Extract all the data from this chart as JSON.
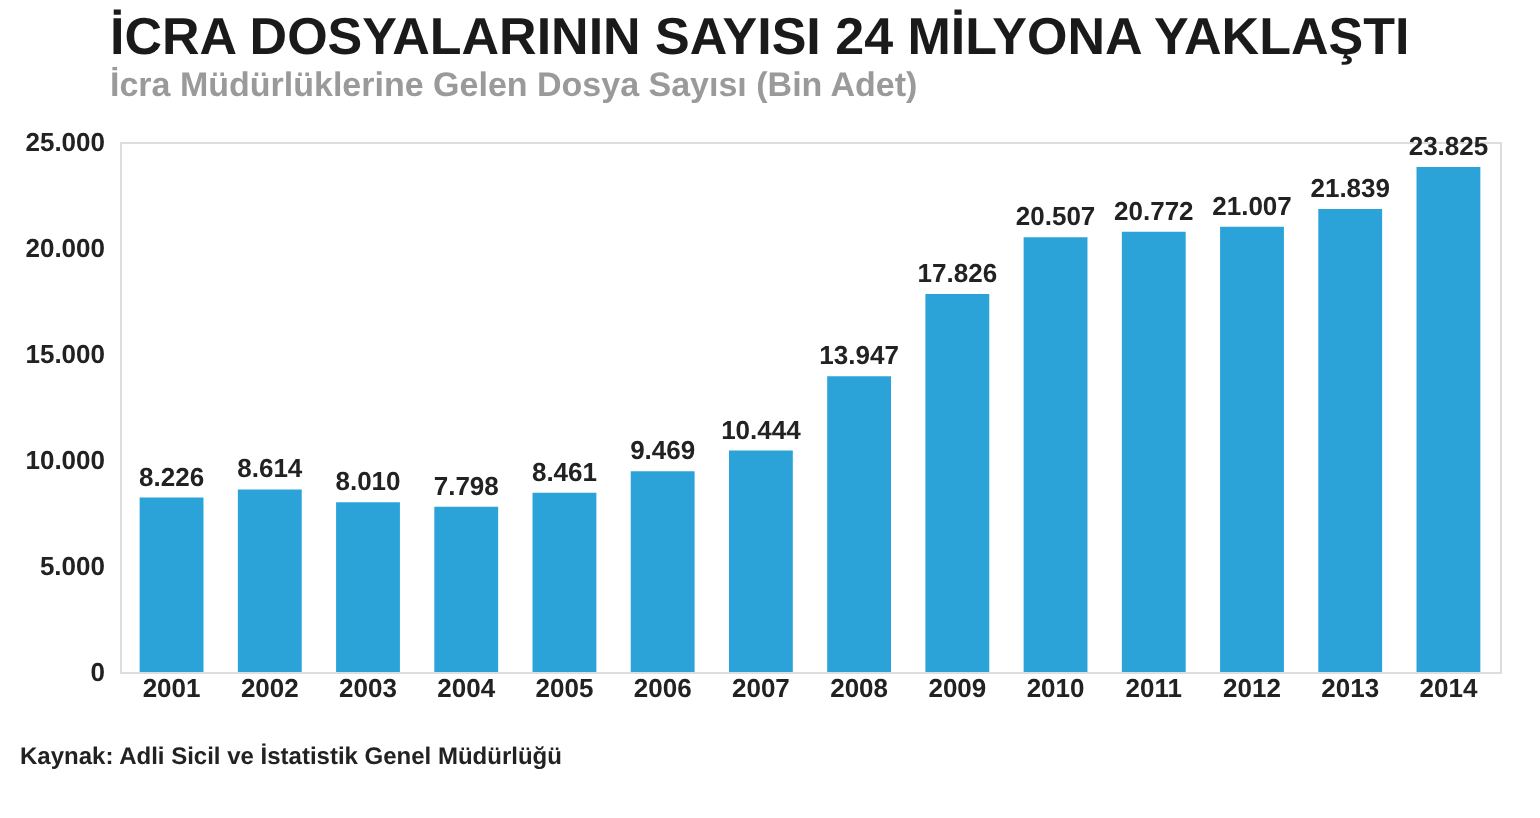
{
  "chart_data": {
    "type": "bar",
    "title": "İCRA DOSYALARININ SAYISI 24 MİLYONA YAKLAŞTI",
    "subtitle": "İcra Müdürlüklerine Gelen Dosya Sayısı (Bin Adet)",
    "categories": [
      "2001",
      "2002",
      "2003",
      "2004",
      "2005",
      "2006",
      "2007",
      "2008",
      "2009",
      "2010",
      "2011",
      "2012",
      "2013",
      "2014"
    ],
    "values": [
      8226,
      8614,
      8010,
      7798,
      8461,
      9469,
      10444,
      13947,
      17826,
      20507,
      20772,
      21007,
      21839,
      23825
    ],
    "value_labels": [
      "8.226",
      "8.614",
      "8.010",
      "7.798",
      "8.461",
      "9.469",
      "10.444",
      "13.947",
      "17.826",
      "20.507",
      "20.772",
      "21.007",
      "21.839",
      "23.825"
    ],
    "color": "#2ba3d9",
    "ylim": [
      0,
      25000
    ],
    "yticks": [
      {
        "value": 0,
        "label": "0"
      },
      {
        "value": 5000,
        "label": "5.000"
      },
      {
        "value": 10000,
        "label": "10.000"
      },
      {
        "value": 15000,
        "label": "15.000"
      },
      {
        "value": 20000,
        "label": "20.000"
      },
      {
        "value": 25000,
        "label": "25.000"
      }
    ],
    "grid": false,
    "annotations": [
      "Kaynak: Adli Sicil ve İstatistik Genel Müdürlüğü"
    ]
  }
}
